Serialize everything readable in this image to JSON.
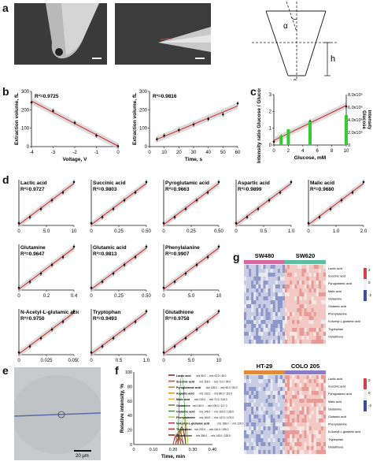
{
  "panels": {
    "a": "a",
    "b": "b",
    "c": "c",
    "d": "d",
    "e": "e",
    "f": "f",
    "g": "g"
  },
  "a": {
    "sem_caption_1": "",
    "sem_caption_2": "",
    "diagram_labels": {
      "alpha": "α",
      "h": "h",
      "a": "a"
    }
  },
  "b": {
    "plot1": {
      "r2": "R²=0.9725",
      "ylabel": "Extraction volume, fL",
      "xlabel": "Voltage, V",
      "xticks": [
        "-4",
        "-3",
        "-2",
        "-1",
        "0"
      ],
      "yticks": [
        "0",
        "100",
        "200",
        "300"
      ],
      "points": [
        [
          -4,
          240
        ],
        [
          -3,
          195
        ],
        [
          -2,
          130
        ],
        [
          -1,
          60
        ],
        [
          0,
          2
        ]
      ]
    },
    "plot2": {
      "r2": "R²=0.9816",
      "ylabel": "Extraction volume, fL",
      "xlabel": "Time, s",
      "xticks": [
        "0",
        "10",
        "20",
        "30",
        "40",
        "50",
        "60"
      ],
      "yticks": [
        "0",
        "100",
        "200",
        "300"
      ],
      "points": [
        [
          5,
          40
        ],
        [
          10,
          60
        ],
        [
          20,
          90
        ],
        [
          30,
          120
        ],
        [
          40,
          150
        ],
        [
          50,
          175
        ],
        [
          60,
          235
        ]
      ]
    }
  },
  "c": {
    "ylabel_left": "Intensity ratio Glucose / Glucose-d₂",
    "ylabel_right": "Intensity",
    "right_axis_word": "Glucose",
    "xlabel": "Glucose, mM",
    "xticks": [
      "0",
      "2",
      "4",
      "6",
      "8",
      "10"
    ],
    "yticks_left": [
      "0",
      "1",
      "2",
      "3"
    ],
    "yticks_right": [
      "0",
      "2.0x10⁶",
      "4.0x10⁶",
      "6.0x10⁶",
      "8.0x10⁶"
    ],
    "points": [
      [
        0,
        0.2
      ],
      [
        1,
        0.5
      ],
      [
        2,
        0.7
      ],
      [
        5,
        1.4
      ],
      [
        10,
        2.3
      ]
    ]
  },
  "d": {
    "plots": [
      {
        "name": "Lactic acid",
        "r2": "R²=0.9727",
        "xticks": [
          "0",
          "5.0",
          "10"
        ],
        "xmax": 10
      },
      {
        "name": "Succinic acid",
        "r2": "R²=0.9803",
        "xticks": [
          "0",
          "0.25",
          "0.50"
        ],
        "xmax": 0.5
      },
      {
        "name": "Pyroglutamic acid",
        "r2": "R²=0.9663",
        "xticks": [
          "0",
          "0.25",
          "0.50"
        ],
        "xmax": 0.5
      },
      {
        "name": "Aspartic acid",
        "r2": "R²=0.9899",
        "xticks": [
          "0",
          "0.5",
          "1.0"
        ],
        "xmax": 1.0
      },
      {
        "name": "Malic acid",
        "r2": "R²=0.9680",
        "xticks": [
          "0",
          "1.0",
          "2.0"
        ],
        "xmax": 2.0
      },
      {
        "name": "Glutamine",
        "r2": "R²=0.9647",
        "xticks": [
          "0",
          "0.2",
          "0.4"
        ],
        "xmax": 0.4
      },
      {
        "name": "Glutamic acid",
        "r2": "R²=0.9813",
        "xticks": [
          "0",
          "0.25",
          "0.50"
        ],
        "xmax": 0.5
      },
      {
        "name": "Phenylalanine",
        "r2": "R²=0.9907",
        "xticks": [
          "0",
          "5.0",
          "10"
        ],
        "xmax": 10
      },
      {
        "name": "N-Acetyl-L-glutamic acid",
        "r2": "R²=0.9750",
        "xticks": [
          "0",
          "0.025",
          "0.050"
        ],
        "xmax": 0.05
      },
      {
        "name": "Tryptophan",
        "r2": "R²=0.9493",
        "xticks": [
          "0",
          "0.5",
          "1.0"
        ],
        "xmax": 1.0
      },
      {
        "name": "Glutathione",
        "r2": "R²=0.9758",
        "xticks": [
          "0",
          "5.0",
          "10"
        ],
        "xmax": 10
      }
    ]
  },
  "e": {
    "scalebar": "20 μm"
  },
  "f": {
    "ylabel": "Relative intensity, %",
    "xlabel": "Time, min",
    "xticks": [
      "0",
      "0.10",
      "0.20",
      "0.30",
      "0.40"
    ],
    "yticks": [
      "0",
      "20",
      "40",
      "60",
      "80",
      "100"
    ],
    "legend": [
      {
        "name": "Lactic acid",
        "mz": "m/z 90.0 → m/z 43.0 / 45.0",
        "color": "#8b1a1a"
      },
      {
        "name": "Succinic acid",
        "mz": "m/z 118.0 → m/z 73.0 / 99.0",
        "color": "#d4382a"
      },
      {
        "name": "Pyroglutamic acid",
        "mz": "m/z 128.0 → m/z 82.0 / 84.0",
        "color": "#e0702a"
      },
      {
        "name": "Aspartic acid",
        "mz": "m/z 132.0 → m/z 88.0 / 115.0",
        "color": "#c8a020"
      },
      {
        "name": "Malic acid",
        "mz": "m/z 133.0 → m/z 71.0 / 115.0",
        "color": "#e0b030"
      },
      {
        "name": "Glutamine",
        "mz": "m/z 145.0 → m/z 109.0 / 127.0",
        "color": "#7a7a30"
      },
      {
        "name": "Glutamic acid",
        "mz": "m/z 146.0 → m/z 102.0 / 128.0",
        "color": "#2ca02c"
      },
      {
        "name": "Phenylalanine",
        "mz": "m/z 164.0 → m/z 147.0 / 103.0",
        "color": "#aacc30"
      },
      {
        "name": "N-Acetyl-L-glutamic acid",
        "mz": "m/z 188.0 → m/z 128.0 / 146.0",
        "color": "#b03060"
      },
      {
        "name": "Tryptophan",
        "mz": "m/z 203.0 → m/z 116.0 / 159.0",
        "color": "#b0303a"
      },
      {
        "name": "Glutathione",
        "mz": "m/z 306.0 → m/z 143.0 / 128.0",
        "color": "#7a1f1f"
      }
    ]
  },
  "g": {
    "top": {
      "group1": "SW480",
      "group2": "SW620",
      "color1": "#d66aa0",
      "color2": "#5bbfa0"
    },
    "bottom": {
      "group1": "HT-29",
      "group2": "COLO 205",
      "color1": "#e38a3a",
      "color2": "#8c7cc8"
    },
    "rows": [
      "Lactic acid",
      "Succinic acid",
      "Pyroglutamic acid",
      "Malic acid",
      "Glutamine",
      "Glutamic acid",
      "Phenylalanine",
      "N-Acetyl-L-glutamic acid",
      "Tryptophan",
      "Glutathione"
    ],
    "colorbar_ticks": [
      "2",
      "0",
      "-2"
    ],
    "high_color": "#d6404a",
    "low_color": "#3a4fa0"
  }
}
